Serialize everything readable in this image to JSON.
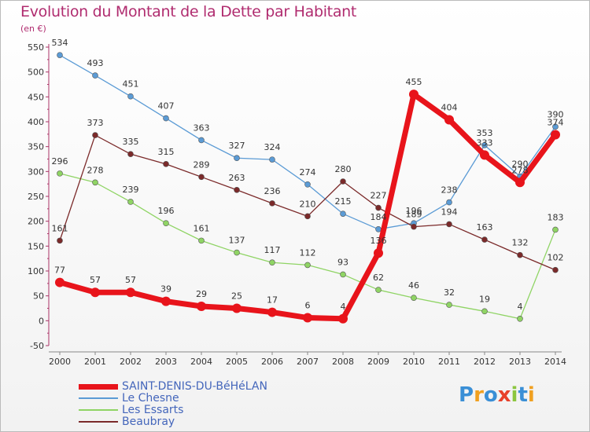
{
  "title": "Evolution du Montant de la Dette par Habitant",
  "unit_label": "(en €)",
  "logo": {
    "letters": [
      "P",
      "r",
      "o",
      "x",
      "i",
      "t",
      "i"
    ],
    "colors": [
      "#3a8fd6",
      "#f0a020",
      "#3a8fd6",
      "#e8402a",
      "#8cc63f",
      "#3a8fd6",
      "#f0a020"
    ]
  },
  "chart_data": {
    "type": "line",
    "title": "Evolution du Montant de la Dette par Habitant",
    "ylabel": "(en €)",
    "xlabel": "",
    "x": [
      "2000",
      "2001",
      "2002",
      "2003",
      "2004",
      "2005",
      "2006",
      "2007",
      "2008",
      "2009",
      "2010",
      "2011",
      "2012",
      "2013",
      "2014"
    ],
    "yticks": [
      -50,
      0,
      50,
      100,
      150,
      200,
      250,
      300,
      350,
      400,
      450,
      500,
      550
    ],
    "ylim": [
      -50,
      550
    ],
    "grid": false,
    "legend_position": "bottom-left",
    "series": [
      {
        "name": "SAINT-DENIS-DU-BéHéLAN",
        "color": "#e8141b",
        "width": 7,
        "marker": 6,
        "values": [
          77,
          57,
          57,
          39,
          29,
          25,
          17,
          6,
          4,
          136,
          455,
          404,
          333,
          278,
          374
        ]
      },
      {
        "name": "Le Chesne",
        "color": "#5b9bd5",
        "width": 1.3,
        "marker": 3.5,
        "values": [
          534,
          493,
          451,
          407,
          363,
          327,
          324,
          274,
          215,
          184,
          196,
          238,
          353,
          290,
          390
        ]
      },
      {
        "name": "Les Essarts",
        "color": "#8fd464",
        "width": 1.3,
        "marker": 3.5,
        "values": [
          296,
          278,
          239,
          196,
          161,
          137,
          117,
          112,
          93,
          62,
          46,
          32,
          19,
          4,
          183
        ]
      },
      {
        "name": "Beaubray",
        "color": "#7b2a2a",
        "width": 1.3,
        "marker": 3.5,
        "values": [
          161,
          373,
          335,
          315,
          289,
          263,
          236,
          210,
          280,
          227,
          189,
          194,
          163,
          132,
          102
        ]
      }
    ]
  }
}
